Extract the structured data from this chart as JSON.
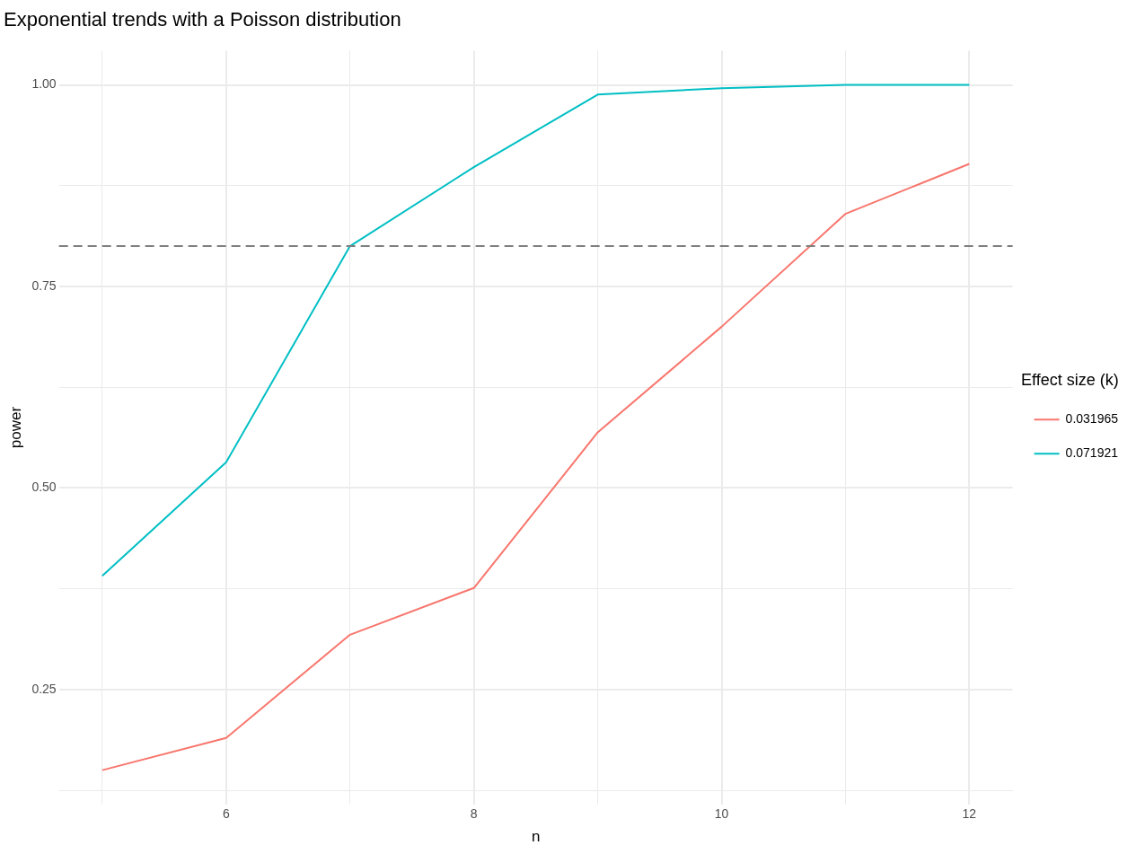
{
  "chart_data": {
    "type": "line",
    "title": "Exponential trends with a Poisson distribution",
    "xlabel": "n",
    "ylabel": "power",
    "legend_title": "Effect size (k)",
    "legend": "right",
    "grid": true,
    "x": [
      5,
      6,
      7,
      8,
      9,
      10,
      11,
      12
    ],
    "series": [
      {
        "name": "0.031965",
        "color": "#f8766d",
        "values": [
          0.15,
          0.19,
          0.318,
          0.376,
          0.569,
          0.7,
          0.84,
          0.902
        ]
      },
      {
        "name": "0.071921",
        "color": "#00bfc4",
        "values": [
          0.391,
          0.532,
          0.8,
          0.898,
          0.988,
          0.996,
          1.0,
          1.0
        ]
      }
    ],
    "xlim": [
      4.65,
      12.35
    ],
    "xticks": [
      {
        "value": 5,
        "label": null
      },
      6,
      {
        "value": 7,
        "label": null
      },
      8,
      {
        "value": 9,
        "label": null
      },
      10,
      {
        "value": 11,
        "label": null
      },
      12
    ],
    "ylim": [
      0.1075,
      1.0425
    ],
    "yticks": [
      {
        "value": 0.125,
        "label": null
      },
      {
        "value": 0.25,
        "label": "0.25"
      },
      {
        "value": 0.375,
        "label": null
      },
      {
        "value": 0.5,
        "label": "0.50"
      },
      {
        "value": 0.625,
        "label": null
      },
      {
        "value": 0.75,
        "label": "0.75"
      },
      {
        "value": 0.875,
        "label": null
      },
      {
        "value": 1.0,
        "label": "1.00"
      }
    ],
    "ref_lines": [
      {
        "axis": "y",
        "value": 0.8,
        "color": "#7f7f7f",
        "line_style": "dashed"
      }
    ]
  }
}
